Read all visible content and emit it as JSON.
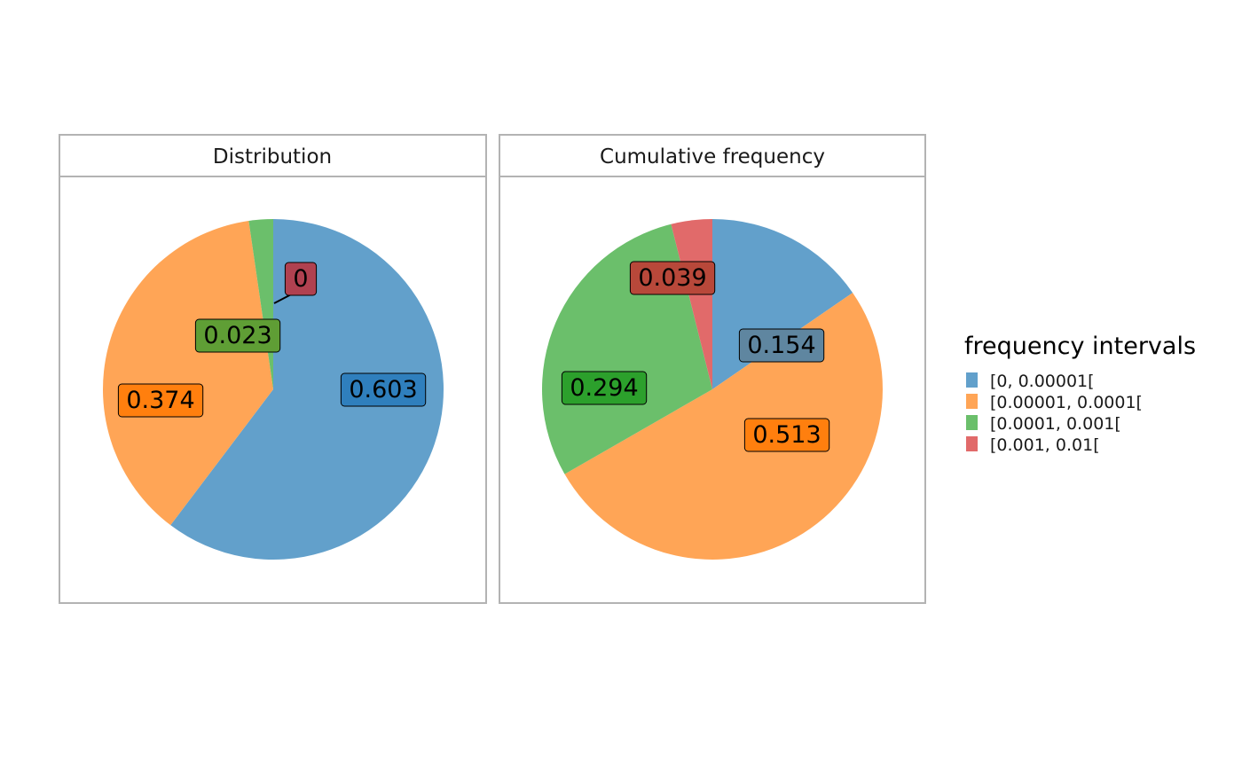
{
  "chart_data": {
    "type": "pie",
    "legend": {
      "title": "frequency intervals",
      "placement": "right",
      "entries": [
        {
          "label": "[0, 0.00001[",
          "color": "#62a0cb"
        },
        {
          "label": "[0.00001, 0.0001[",
          "color": "#ffa556"
        },
        {
          "label": "[0.0001, 0.001[",
          "color": "#6bbf6b"
        },
        {
          "label": "[0.001, 0.01[",
          "color": "#e16a6a"
        }
      ]
    },
    "panels": [
      {
        "title": "Distribution",
        "slices": [
          {
            "category": "[0, 0.00001[",
            "value": 0.603,
            "label": "0.603",
            "label_fill": "#2f7fbd"
          },
          {
            "category": "[0.00001, 0.0001[",
            "value": 0.374,
            "label": "0.374",
            "label_fill": "#ff7f0e"
          },
          {
            "category": "[0.0001, 0.001[",
            "value": 0.023,
            "label": "0.023",
            "label_fill": "#5f9e35"
          },
          {
            "category": "[0.001, 0.01[",
            "value": 0,
            "label": "0",
            "label_fill": "#b04150"
          }
        ]
      },
      {
        "title": "Cumulative frequency",
        "slices": [
          {
            "category": "[0, 0.00001[",
            "value": 0.154,
            "label": "0.154",
            "label_fill": "#5f86a0"
          },
          {
            "category": "[0.00001, 0.0001[",
            "value": 0.513,
            "label": "0.513",
            "label_fill": "#ff7f0e"
          },
          {
            "category": "[0.0001, 0.001[",
            "value": 0.294,
            "label": "0.294",
            "label_fill": "#2ca02c"
          },
          {
            "category": "[0.001, 0.01[",
            "value": 0.039,
            "label": "0.039",
            "label_fill": "#b8483a"
          }
        ]
      }
    ]
  }
}
